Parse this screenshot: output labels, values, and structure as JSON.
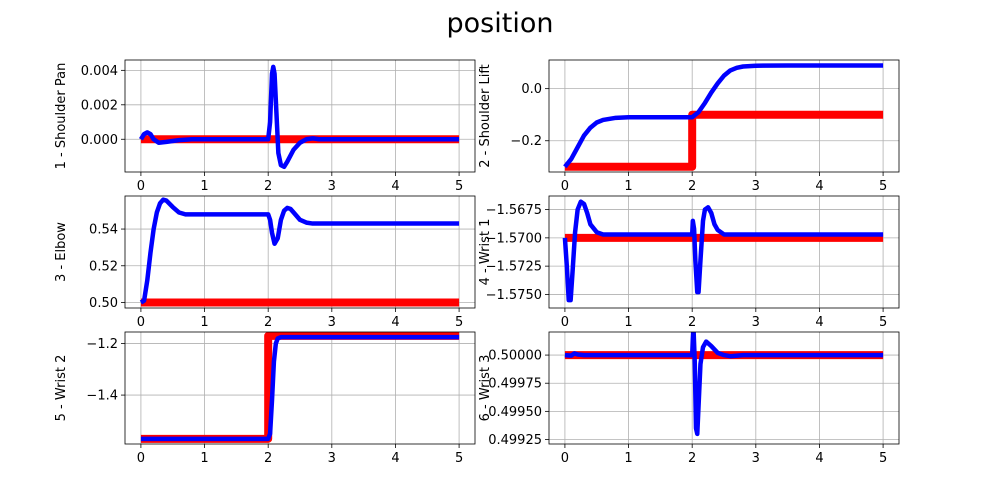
{
  "figure": {
    "title": "position"
  },
  "colors": {
    "desired": "#ff0000",
    "actual": "#0000ff",
    "grid": "#b0b0b0"
  },
  "chart_data": [
    {
      "type": "line",
      "ylabel": "1 - Shoulder Pan",
      "xlim": [
        -0.25,
        5.25
      ],
      "ylim": [
        -0.0019,
        0.0046
      ],
      "xticks": [
        0,
        1,
        2,
        3,
        4,
        5
      ],
      "yticks": [
        0.0,
        0.002,
        0.004
      ],
      "ytick_labels": [
        "0.000",
        "0.002",
        "0.004"
      ],
      "grid": true,
      "series": [
        {
          "color": "#ff0000",
          "x": [
            0,
            2.0,
            2.0,
            5
          ],
          "y": [
            0.0,
            0.0,
            0.0,
            0.0
          ]
        },
        {
          "color": "#0000ff",
          "x": [
            0,
            0.05,
            0.1,
            0.15,
            0.2,
            0.28,
            0.4,
            0.6,
            0.8,
            1.5,
            2.0,
            2.03,
            2.06,
            2.08,
            2.1,
            2.13,
            2.16,
            2.2,
            2.25,
            2.3,
            2.4,
            2.5,
            2.6,
            2.7,
            2.8,
            3.0,
            5
          ],
          "y": [
            0.0,
            0.0003,
            0.0004,
            0.0003,
            0.0,
            -0.0002,
            -0.00015,
            -5e-05,
            0.0,
            0.0,
            0.0,
            0.001,
            0.0038,
            0.0042,
            0.0038,
            0.0015,
            -0.0008,
            -0.0015,
            -0.0016,
            -0.0013,
            -0.0006,
            -0.0002,
            0.0,
            5e-05,
            0.0,
            0.0,
            0.0
          ]
        }
      ]
    },
    {
      "type": "line",
      "ylabel": "2 - Shoulder Lift",
      "xlim": [
        -0.25,
        5.25
      ],
      "ylim": [
        -0.32,
        0.11
      ],
      "xticks": [
        0,
        1,
        2,
        3,
        4,
        5
      ],
      "yticks": [
        -0.2,
        0.0
      ],
      "ytick_labels": [
        "−0.2",
        "0.0"
      ],
      "grid": true,
      "series": [
        {
          "color": "#ff0000",
          "x": [
            0,
            2.0,
            2.0,
            5
          ],
          "y": [
            -0.3,
            -0.3,
            -0.1,
            -0.1
          ]
        },
        {
          "color": "#0000ff",
          "x": [
            0,
            0.1,
            0.2,
            0.3,
            0.4,
            0.5,
            0.6,
            0.8,
            1.0,
            1.3,
            2.0,
            2.1,
            2.2,
            2.3,
            2.4,
            2.5,
            2.6,
            2.7,
            2.8,
            3.0,
            3.5,
            4.0,
            5
          ],
          "y": [
            -0.3,
            -0.27,
            -0.225,
            -0.18,
            -0.15,
            -0.13,
            -0.12,
            -0.112,
            -0.11,
            -0.11,
            -0.11,
            -0.09,
            -0.055,
            -0.015,
            0.02,
            0.05,
            0.07,
            0.08,
            0.085,
            0.088,
            0.089,
            0.089,
            0.089
          ]
        }
      ]
    },
    {
      "type": "line",
      "ylabel": "3 - Elbow",
      "xlim": [
        -0.25,
        5.25
      ],
      "ylim": [
        0.497,
        0.558
      ],
      "xticks": [
        0,
        1,
        2,
        3,
        4,
        5
      ],
      "yticks": [
        0.5,
        0.52,
        0.54
      ],
      "ytick_labels": [
        "0.50",
        "0.52",
        "0.54"
      ],
      "grid": true,
      "series": [
        {
          "color": "#ff0000",
          "x": [
            0,
            5
          ],
          "y": [
            0.5,
            0.5
          ]
        },
        {
          "color": "#0000ff",
          "x": [
            0,
            0.05,
            0.1,
            0.15,
            0.2,
            0.25,
            0.3,
            0.35,
            0.4,
            0.5,
            0.6,
            0.7,
            0.8,
            1.0,
            2.0,
            2.03,
            2.06,
            2.1,
            2.15,
            2.2,
            2.25,
            2.3,
            2.35,
            2.4,
            2.5,
            2.6,
            2.7,
            3.0,
            5
          ],
          "y": [
            0.5,
            0.501,
            0.512,
            0.527,
            0.54,
            0.549,
            0.554,
            0.556,
            0.5555,
            0.552,
            0.549,
            0.548,
            0.548,
            0.548,
            0.548,
            0.545,
            0.538,
            0.532,
            0.535,
            0.545,
            0.55,
            0.5515,
            0.551,
            0.549,
            0.545,
            0.5435,
            0.543,
            0.543,
            0.543
          ]
        }
      ]
    },
    {
      "type": "line",
      "ylabel": "4 - Wrist 1",
      "xlim": [
        -0.25,
        5.25
      ],
      "ylim": [
        -1.5762,
        -1.5663
      ],
      "xticks": [
        0,
        1,
        2,
        3,
        4,
        5
      ],
      "yticks": [
        -1.5675,
        -1.57,
        -1.5725,
        -1.575
      ],
      "ytick_labels": [
        "−1.5675",
        "−1.5700",
        "−1.5725",
        "−1.5750"
      ],
      "grid": true,
      "series": [
        {
          "color": "#ff0000",
          "x": [
            0,
            5
          ],
          "y": [
            -1.57,
            -1.57
          ]
        },
        {
          "color": "#0000ff",
          "x": [
            0,
            0.03,
            0.06,
            0.09,
            0.12,
            0.16,
            0.2,
            0.25,
            0.3,
            0.35,
            0.4,
            0.5,
            0.6,
            0.7,
            1.0,
            2.0,
            2.01,
            2.03,
            2.05,
            2.08,
            2.1,
            2.13,
            2.17,
            2.2,
            2.25,
            2.3,
            2.35,
            2.4,
            2.5,
            2.6,
            2.7,
            3.0,
            5
          ],
          "y": [
            -1.57,
            -1.5725,
            -1.5755,
            -1.5755,
            -1.573,
            -1.5695,
            -1.5675,
            -1.5668,
            -1.567,
            -1.5678,
            -1.5688,
            -1.5695,
            -1.5697,
            -1.5697,
            -1.5697,
            -1.5697,
            -1.5685,
            -1.5692,
            -1.572,
            -1.5748,
            -1.5748,
            -1.572,
            -1.5685,
            -1.5675,
            -1.5673,
            -1.5678,
            -1.5688,
            -1.5693,
            -1.5697,
            -1.5697,
            -1.5697,
            -1.5697,
            -1.5697
          ]
        }
      ]
    },
    {
      "type": "line",
      "ylabel": "5 - Wrist 2",
      "xlim": [
        -0.25,
        5.25
      ],
      "ylim": [
        -1.59,
        -1.155
      ],
      "xticks": [
        0,
        1,
        2,
        3,
        4,
        5
      ],
      "yticks": [
        -1.4,
        -1.2
      ],
      "ytick_labels": [
        "−1.4",
        "−1.2"
      ],
      "grid": true,
      "series": [
        {
          "color": "#ff0000",
          "x": [
            0,
            2.0,
            2.0,
            5
          ],
          "y": [
            -1.57,
            -1.57,
            -1.17,
            -1.17
          ]
        },
        {
          "color": "#0000ff",
          "x": [
            0,
            2.0,
            2.03,
            2.06,
            2.09,
            2.12,
            2.15,
            2.2,
            2.3,
            2.5,
            5
          ],
          "y": [
            -1.57,
            -1.57,
            -1.55,
            -1.42,
            -1.27,
            -1.2,
            -1.18,
            -1.175,
            -1.175,
            -1.175,
            -1.175
          ]
        }
      ]
    },
    {
      "type": "line",
      "ylabel": "6 - Wrist 3",
      "xlim": [
        -0.25,
        5.25
      ],
      "ylim": [
        0.49921,
        0.500205
      ],
      "xticks": [
        0,
        1,
        2,
        3,
        4,
        5
      ],
      "yticks": [
        0.5,
        0.49975,
        0.4995,
        0.49925
      ],
      "ytick_labels": [
        "0.50000",
        "0.49975",
        "0.49950",
        "0.49925"
      ],
      "grid": true,
      "series": [
        {
          "color": "#ff0000",
          "x": [
            0,
            5
          ],
          "y": [
            0.5,
            0.5
          ]
        },
        {
          "color": "#0000ff",
          "x": [
            0,
            0.1,
            0.15,
            0.2,
            0.3,
            0.5,
            2.0,
            2.01,
            2.02,
            2.04,
            2.06,
            2.08,
            2.1,
            2.13,
            2.17,
            2.22,
            2.3,
            2.4,
            2.5,
            2.6,
            2.8,
            5
          ],
          "y": [
            0.5,
            0.499995,
            0.500015,
            0.500005,
            0.5,
            0.5,
            0.5,
            0.50014,
            0.50025,
            0.49995,
            0.49935,
            0.4993,
            0.49955,
            0.49992,
            0.50007,
            0.50012,
            0.50008,
            0.50002,
            0.5,
            0.49999,
            0.5,
            0.5
          ]
        }
      ]
    }
  ]
}
